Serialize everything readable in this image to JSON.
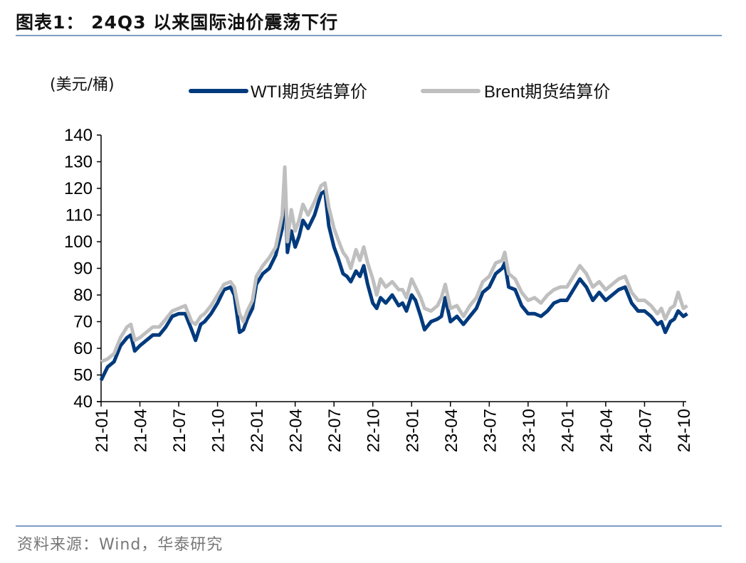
{
  "title": "图表1：  24Q3 以来国际油价震荡下行",
  "source": "资料来源：Wind，华泰研究",
  "chart_data": {
    "type": "line",
    "title": "图表1：  24Q3 以来国际油价震荡下行",
    "ylabel": "(美元/桶)",
    "xlabel": "",
    "ylim": [
      40,
      140
    ],
    "yticks": [
      "40",
      "50",
      "60",
      "70",
      "80",
      "90",
      "100",
      "110",
      "120",
      "130",
      "140"
    ],
    "x_unit": "months since 2021-01",
    "xlim": [
      0,
      45.3
    ],
    "xticks": [
      "21-01",
      "21-04",
      "21-07",
      "21-10",
      "22-01",
      "22-04",
      "22-07",
      "22-10",
      "23-01",
      "23-04",
      "23-07",
      "23-10",
      "24-01",
      "24-04",
      "24-07",
      "24-10"
    ],
    "grid": false,
    "legend_position": "top",
    "x": [
      0,
      0.5,
      1,
      1.5,
      2,
      2.3,
      2.6,
      3,
      3.5,
      4,
      4.5,
      5,
      5.5,
      6,
      6.5,
      7,
      7.3,
      7.7,
      8,
      8.5,
      9,
      9.5,
      10,
      10.3,
      10.7,
      11,
      11.3,
      11.7,
      12,
      12.5,
      13,
      13.5,
      14,
      14.2,
      14.4,
      14.7,
      15,
      15.3,
      15.6,
      16,
      16.5,
      17,
      17.3,
      17.6,
      18,
      18.3,
      18.7,
      19,
      19.3,
      19.7,
      20,
      20.3,
      20.6,
      21,
      21.3,
      21.6,
      22,
      22.5,
      23,
      23.3,
      23.6,
      24,
      24.3,
      24.7,
      25,
      25.5,
      26,
      26.3,
      26.6,
      27,
      27.5,
      28,
      28.5,
      29,
      29.5,
      30,
      30.5,
      31,
      31.2,
      31.5,
      32,
      32.5,
      33,
      33.5,
      34,
      34.5,
      35,
      35.5,
      36,
      36.5,
      37,
      37.5,
      38,
      38.5,
      39,
      39.5,
      40,
      40.5,
      41,
      41.5,
      42,
      42.5,
      43,
      43.3,
      43.6,
      44,
      44.3,
      44.6,
      45,
      45.3
    ],
    "series": [
      {
        "name": "WTI期货结算价",
        "color": "#003a7d",
        "values": [
          48,
          53,
          55,
          61,
          64,
          65,
          59,
          61,
          63,
          65,
          65,
          68,
          72,
          73,
          73,
          67,
          63,
          69,
          70,
          73,
          77,
          82,
          83,
          80,
          66,
          67,
          71,
          75,
          84,
          88,
          90,
          95,
          105,
          123,
          96,
          104,
          98,
          102,
          108,
          105,
          110,
          118,
          119,
          106,
          98,
          94,
          88,
          87,
          85,
          89,
          87,
          91,
          84,
          77,
          75,
          79,
          77,
          80,
          76,
          77,
          74,
          80,
          78,
          72,
          67,
          70,
          71,
          72,
          79,
          70,
          72,
          69,
          72,
          75,
          81,
          83,
          88,
          90,
          92,
          83,
          82,
          76,
          73,
          73,
          72,
          74,
          77,
          78,
          78,
          82,
          86,
          83,
          78,
          81,
          78,
          80,
          82,
          83,
          77,
          74,
          74,
          72,
          69,
          70,
          66,
          70,
          71,
          74,
          72,
          73
        ]
      },
      {
        "name": "Brent期货结算价",
        "color": "#bfbfbf",
        "values": [
          55,
          56,
          58,
          64,
          68,
          69,
          63,
          64,
          66,
          68,
          68,
          71,
          74,
          75,
          76,
          70,
          69,
          72,
          73,
          76,
          80,
          84,
          85,
          83,
          73,
          70,
          74,
          78,
          87,
          91,
          94,
          98,
          110,
          128,
          100,
          112,
          104,
          108,
          114,
          110,
          115,
          121,
          122,
          113,
          105,
          101,
          96,
          94,
          90,
          97,
          93,
          98,
          92,
          86,
          80,
          86,
          83,
          85,
          82,
          82,
          79,
          86,
          83,
          79,
          75,
          74,
          76,
          79,
          84,
          75,
          76,
          72,
          76,
          79,
          85,
          87,
          92,
          93,
          96,
          88,
          86,
          81,
          78,
          79,
          77,
          80,
          82,
          83,
          83,
          87,
          91,
          88,
          83,
          85,
          82,
          84,
          86,
          87,
          81,
          78,
          78,
          76,
          73,
          75,
          71,
          75,
          76,
          81,
          75,
          76
        ]
      }
    ]
  }
}
